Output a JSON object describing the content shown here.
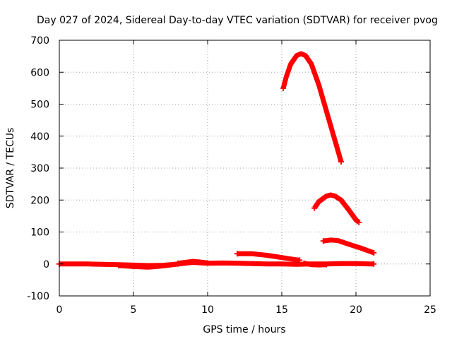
{
  "chart_data": {
    "type": "scatter",
    "title": "Day 027 of 2024, Sidereal Day-to-day VTEC variation (SDTVAR) for receiver pvog",
    "xlabel": "GPS time / hours",
    "ylabel": "SDTVAR / TECUs",
    "xlim": [
      0,
      25
    ],
    "ylim": [
      -100,
      700
    ],
    "xticks": [
      0,
      5,
      10,
      15,
      20,
      25
    ],
    "yticks": [
      -100,
      0,
      100,
      200,
      300,
      400,
      500,
      600,
      700
    ],
    "grid": true,
    "legend": "none",
    "colors": {
      "series": "#ff0000"
    },
    "series": [
      {
        "points": [
          [
            0,
            0
          ],
          [
            2,
            0
          ],
          [
            4,
            -2
          ],
          [
            6,
            -5
          ],
          [
            7,
            -4
          ],
          [
            8,
            0
          ],
          [
            9,
            5
          ],
          [
            10,
            2
          ],
          [
            11,
            3
          ],
          [
            12,
            2
          ],
          [
            13,
            1
          ],
          [
            14,
            0
          ],
          [
            15,
            0
          ],
          [
            16,
            -1
          ],
          [
            17,
            0
          ],
          [
            18,
            0
          ],
          [
            19,
            1
          ],
          [
            20,
            1
          ],
          [
            21,
            0
          ],
          [
            21.2,
            0
          ]
        ]
      },
      {
        "points": [
          [
            4,
            -5
          ],
          [
            5,
            -8
          ],
          [
            6,
            -10
          ],
          [
            7,
            -6
          ],
          [
            8,
            0
          ]
        ]
      },
      {
        "points": [
          [
            8,
            2
          ],
          [
            9,
            8
          ],
          [
            9.5,
            6
          ],
          [
            10,
            3
          ]
        ]
      },
      {
        "points": [
          [
            12,
            32
          ],
          [
            13,
            32
          ],
          [
            14,
            27
          ],
          [
            15,
            20
          ],
          [
            16,
            13
          ],
          [
            16.2,
            12
          ]
        ]
      },
      {
        "points": [
          [
            16.5,
            2
          ],
          [
            17,
            -2
          ],
          [
            17.5,
            -3
          ],
          [
            18,
            -2
          ]
        ]
      },
      {
        "points": [
          [
            15.1,
            550
          ],
          [
            15.3,
            585
          ],
          [
            15.6,
            625
          ],
          [
            16,
            652
          ],
          [
            16.3,
            658
          ],
          [
            16.6,
            652
          ],
          [
            17,
            625
          ],
          [
            17.5,
            560
          ],
          [
            18,
            480
          ],
          [
            18.5,
            400
          ],
          [
            19,
            320
          ]
        ]
      },
      {
        "points": [
          [
            17.2,
            175
          ],
          [
            17.5,
            195
          ],
          [
            18,
            212
          ],
          [
            18.3,
            216
          ],
          [
            18.6,
            212
          ],
          [
            19,
            200
          ],
          [
            19.5,
            170
          ],
          [
            20,
            138
          ],
          [
            20.2,
            130
          ]
        ]
      },
      {
        "points": [
          [
            17.8,
            72
          ],
          [
            18.3,
            75
          ],
          [
            18.8,
            73
          ],
          [
            19.5,
            62
          ],
          [
            20.3,
            50
          ],
          [
            21.2,
            35
          ]
        ]
      }
    ]
  }
}
